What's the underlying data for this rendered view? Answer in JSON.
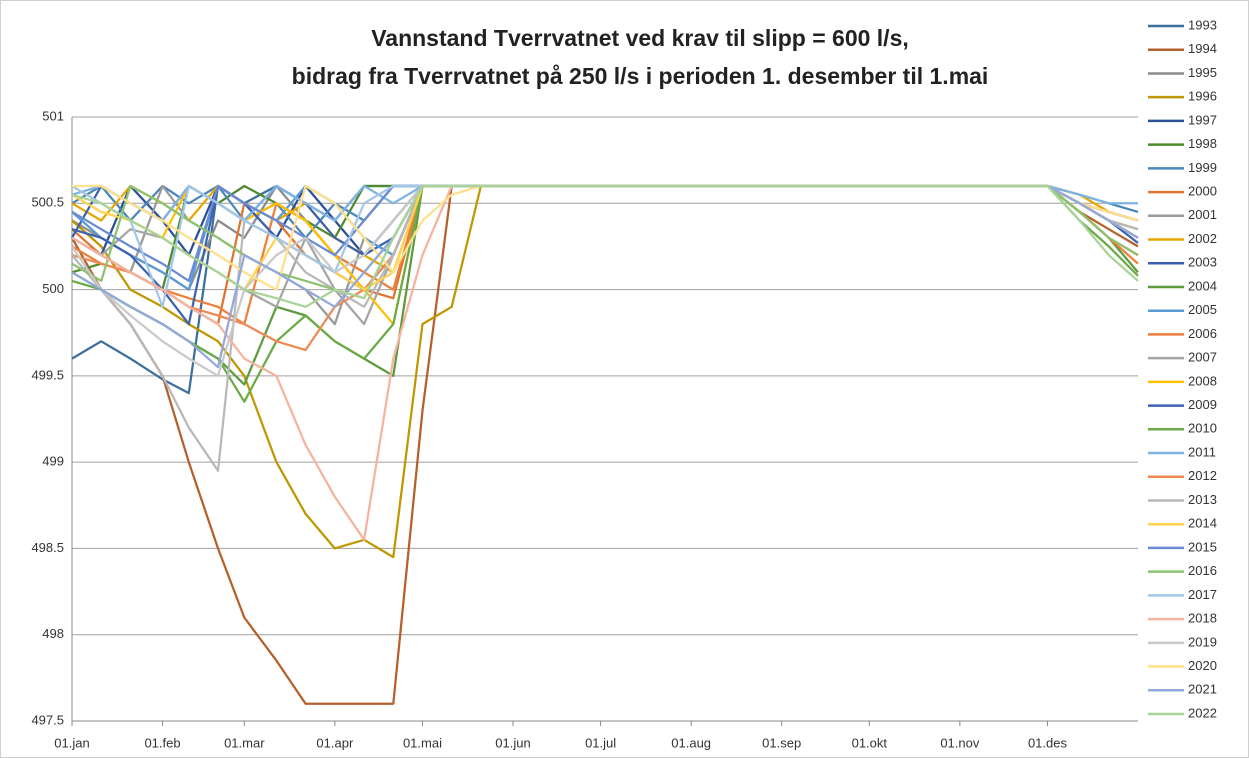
{
  "chart_data": {
    "type": "line",
    "title": [
      "Vannstand Tverrvatnet ved krav til slipp = 600 l/s,",
      "bidrag fra Tverrvatnet på 250 l/s i perioden 1. desember til 1.mai"
    ],
    "x": [
      0,
      10,
      20,
      31,
      40,
      50,
      59,
      70,
      80,
      90,
      100,
      110,
      120,
      130,
      140,
      150,
      334,
      345,
      355,
      365
    ],
    "xlim": [
      0,
      365
    ],
    "xticks": [
      {
        "value": 0,
        "label": "01.jan"
      },
      {
        "value": 31,
        "label": "01.feb"
      },
      {
        "value": 59,
        "label": "01.mar"
      },
      {
        "value": 90,
        "label": "01.apr"
      },
      {
        "value": 120,
        "label": "01.mai"
      },
      {
        "value": 151,
        "label": "01.jun"
      },
      {
        "value": 181,
        "label": "01.jul"
      },
      {
        "value": 212,
        "label": "01.aug"
      },
      {
        "value": 243,
        "label": "01.sep"
      },
      {
        "value": 273,
        "label": "01.okt"
      },
      {
        "value": 304,
        "label": "01.nov"
      },
      {
        "value": 334,
        "label": "01.des"
      }
    ],
    "ylim": [
      497.5,
      501
    ],
    "yticks": [
      497.5,
      498,
      498.5,
      499,
      499.5,
      500,
      500.5,
      501
    ],
    "grid": true,
    "legend": "right",
    "series": [
      {
        "name": "1993",
        "color": "#3d6f9e",
        "values": [
          499.6,
          499.7,
          499.6,
          499.48,
          499.4,
          500.6,
          500.5,
          500.6,
          500.5,
          500.4,
          500.6,
          500.6,
          500.6,
          500.6,
          500.6,
          500.6,
          500.6,
          500.5,
          500.4,
          500.3
        ]
      },
      {
        "name": "1994",
        "color": "#b5602a",
        "values": [
          500.3,
          500.0,
          499.8,
          499.5,
          499.0,
          498.5,
          498.1,
          497.85,
          497.6,
          497.6,
          497.6,
          497.6,
          499.3,
          500.6,
          500.6,
          500.6,
          500.6,
          500.45,
          500.35,
          500.25
        ]
      },
      {
        "name": "1995",
        "color": "#8c8c8c",
        "values": [
          500.4,
          500.3,
          500.2,
          500.1,
          500.0,
          500.4,
          500.3,
          500.6,
          500.4,
          500.2,
          500.1,
          500.3,
          500.6,
          500.6,
          500.6,
          500.6,
          500.6,
          500.5,
          500.45,
          500.4
        ]
      },
      {
        "name": "1996",
        "color": "#bf9700",
        "values": [
          500.4,
          500.25,
          500.0,
          499.9,
          499.8,
          499.7,
          499.5,
          499.0,
          498.7,
          498.5,
          498.55,
          498.45,
          499.8,
          499.9,
          500.6,
          500.6,
          500.6,
          500.5,
          500.4,
          500.3
        ]
      },
      {
        "name": "1997",
        "color": "#2c4f98",
        "values": [
          500.3,
          500.2,
          500.6,
          500.4,
          500.2,
          500.6,
          500.5,
          500.3,
          500.6,
          500.4,
          500.2,
          500.4,
          500.6,
          500.6,
          500.6,
          500.6,
          500.6,
          500.5,
          500.45,
          500.4
        ]
      },
      {
        "name": "1998",
        "color": "#4e8a2e",
        "values": [
          500.1,
          500.15,
          500.1,
          500.0,
          500.6,
          500.5,
          500.6,
          500.5,
          500.4,
          500.3,
          500.6,
          500.6,
          500.6,
          500.6,
          500.6,
          500.6,
          500.6,
          500.5,
          500.4,
          500.3
        ]
      },
      {
        "name": "1999",
        "color": "#4a86b8",
        "values": [
          500.5,
          500.6,
          500.4,
          500.6,
          500.5,
          500.6,
          500.4,
          500.5,
          500.3,
          500.5,
          500.4,
          500.6,
          500.6,
          500.6,
          500.6,
          500.6,
          500.6,
          500.55,
          500.5,
          500.45
        ]
      },
      {
        "name": "2000",
        "color": "#e07530",
        "values": [
          500.35,
          500.2,
          500.1,
          500.0,
          499.9,
          499.8,
          500.5,
          500.4,
          500.2,
          500.1,
          500.0,
          499.95,
          500.6,
          500.6,
          500.6,
          500.6,
          500.6,
          500.45,
          500.3,
          500.2
        ]
      },
      {
        "name": "2001",
        "color": "#9a9a9a",
        "values": [
          500.3,
          500.2,
          500.1,
          500.6,
          500.4,
          500.3,
          500.2,
          500.1,
          500.0,
          499.8,
          500.3,
          500.2,
          500.6,
          500.6,
          500.6,
          500.6,
          500.6,
          500.5,
          500.4,
          500.35
        ]
      },
      {
        "name": "2002",
        "color": "#e6a700",
        "values": [
          500.5,
          500.4,
          500.6,
          500.5,
          500.4,
          500.6,
          500.5,
          500.4,
          500.5,
          500.3,
          500.2,
          500.1,
          500.6,
          500.6,
          500.6,
          500.6,
          500.6,
          500.55,
          500.45,
          500.4
        ]
      },
      {
        "name": "2003",
        "color": "#3a5fae",
        "values": [
          500.3,
          500.6,
          500.5,
          500.4,
          500.6,
          500.5,
          500.4,
          500.6,
          500.5,
          500.3,
          500.2,
          500.3,
          500.6,
          500.6,
          500.6,
          500.6,
          500.6,
          500.5,
          500.4,
          500.3
        ]
      },
      {
        "name": "2004",
        "color": "#5e9a3e",
        "values": [
          500.1,
          500.0,
          499.9,
          499.8,
          499.7,
          499.6,
          499.45,
          499.9,
          499.85,
          499.7,
          499.6,
          499.5,
          500.6,
          500.6,
          500.6,
          500.6,
          500.6,
          500.45,
          500.3,
          500.1
        ]
      },
      {
        "name": "2005",
        "color": "#5b9bd5",
        "values": [
          500.45,
          500.3,
          500.2,
          500.1,
          500.0,
          500.6,
          500.5,
          500.4,
          500.6,
          500.5,
          500.3,
          500.2,
          500.6,
          500.6,
          500.6,
          500.6,
          500.6,
          500.5,
          500.4,
          500.3
        ]
      },
      {
        "name": "2006",
        "color": "#ee7f3d",
        "values": [
          500.25,
          500.15,
          500.1,
          500.0,
          499.95,
          499.9,
          499.8,
          500.5,
          500.4,
          500.2,
          500.1,
          500.0,
          500.6,
          500.6,
          500.6,
          500.6,
          500.6,
          500.45,
          500.3,
          500.15
        ]
      },
      {
        "name": "2007",
        "color": "#a5a5a5",
        "values": [
          500.3,
          500.2,
          500.35,
          500.3,
          500.2,
          500.1,
          500.0,
          499.9,
          500.3,
          500.0,
          499.8,
          500.2,
          500.6,
          500.6,
          500.6,
          500.6,
          500.6,
          500.5,
          500.4,
          500.3
        ]
      },
      {
        "name": "2008",
        "color": "#ffc000",
        "values": [
          500.6,
          500.5,
          500.4,
          500.3,
          500.6,
          500.5,
          500.4,
          500.5,
          500.4,
          500.2,
          500.0,
          499.8,
          500.6,
          500.6,
          500.6,
          500.6,
          500.6,
          500.5,
          500.4,
          500.35
        ]
      },
      {
        "name": "2009",
        "color": "#3c63b2",
        "values": [
          500.35,
          500.3,
          500.2,
          500.0,
          499.8,
          500.6,
          500.5,
          500.3,
          500.2,
          500.1,
          500.0,
          500.2,
          500.6,
          500.6,
          500.6,
          500.6,
          500.6,
          500.5,
          500.4,
          500.27
        ]
      },
      {
        "name": "2010",
        "color": "#6aab47",
        "values": [
          500.05,
          500.0,
          499.9,
          499.8,
          499.7,
          499.6,
          499.35,
          499.7,
          499.85,
          499.7,
          499.6,
          499.8,
          500.6,
          500.6,
          500.6,
          500.6,
          500.6,
          500.4,
          500.25,
          500.08
        ]
      },
      {
        "name": "2011",
        "color": "#7fb3e3",
        "values": [
          500.55,
          500.6,
          500.5,
          500.4,
          500.6,
          500.5,
          500.4,
          500.6,
          500.5,
          500.4,
          500.6,
          500.5,
          500.6,
          500.6,
          500.6,
          500.6,
          500.6,
          500.55,
          500.5,
          500.5
        ]
      },
      {
        "name": "2012",
        "color": "#f08a55",
        "values": [
          500.2,
          500.15,
          500.1,
          500.0,
          499.9,
          499.85,
          499.8,
          499.7,
          499.65,
          499.9,
          500.0,
          500.2,
          500.6,
          500.6,
          500.6,
          500.6,
          500.6,
          500.5,
          500.4,
          500.3
        ]
      },
      {
        "name": "2013",
        "color": "#b8b8b8",
        "values": [
          500.2,
          500.0,
          499.8,
          499.5,
          499.2,
          498.95,
          500.4,
          500.3,
          500.1,
          500.0,
          499.9,
          500.2,
          500.6,
          500.6,
          500.6,
          500.6,
          500.6,
          500.5,
          500.4,
          500.35
        ]
      },
      {
        "name": "2014",
        "color": "#ffd34d",
        "values": [
          500.55,
          500.45,
          500.4,
          500.3,
          500.2,
          500.1,
          500.0,
          500.3,
          500.2,
          500.1,
          500.0,
          500.1,
          500.6,
          500.6,
          500.6,
          500.6,
          500.6,
          500.5,
          500.4,
          500.3
        ]
      },
      {
        "name": "2015",
        "color": "#6a8bd4",
        "values": [
          500.45,
          500.35,
          500.25,
          500.15,
          500.05,
          500.6,
          500.5,
          500.4,
          500.3,
          500.2,
          500.4,
          500.6,
          500.6,
          500.6,
          500.6,
          500.6,
          500.6,
          500.5,
          500.45,
          500.4
        ]
      },
      {
        "name": "2016",
        "color": "#8cc370",
        "values": [
          500.15,
          500.05,
          500.6,
          500.5,
          500.4,
          500.3,
          500.2,
          500.1,
          500.05,
          500.0,
          499.95,
          500.3,
          500.6,
          500.6,
          500.6,
          500.6,
          500.6,
          500.45,
          500.3,
          500.2
        ]
      },
      {
        "name": "2017",
        "color": "#a3c7ea",
        "values": [
          500.6,
          500.5,
          500.4,
          499.9,
          500.6,
          500.5,
          500.4,
          500.3,
          500.2,
          500.1,
          500.5,
          500.6,
          500.6,
          500.6,
          500.6,
          500.6,
          500.6,
          500.5,
          500.45,
          500.4
        ]
      },
      {
        "name": "2018",
        "color": "#f5b3a0",
        "values": [
          500.3,
          500.2,
          500.1,
          500.0,
          499.9,
          499.8,
          499.6,
          499.5,
          499.1,
          498.8,
          498.55,
          499.6,
          500.2,
          500.6,
          500.6,
          500.6,
          500.6,
          500.5,
          500.45,
          500.4
        ]
      },
      {
        "name": "2019",
        "color": "#c9c9c9",
        "values": [
          500.25,
          500.0,
          499.85,
          499.7,
          499.6,
          499.5,
          500.0,
          500.2,
          500.3,
          500.1,
          500.2,
          500.4,
          500.6,
          500.6,
          500.6,
          500.6,
          500.6,
          500.5,
          500.4,
          500.3
        ]
      },
      {
        "name": "2020",
        "color": "#ffe08a",
        "values": [
          500.6,
          500.6,
          500.5,
          500.4,
          500.3,
          500.2,
          500.1,
          500.0,
          500.6,
          500.5,
          500.3,
          500.1,
          500.4,
          500.55,
          500.6,
          500.6,
          500.6,
          500.5,
          500.45,
          500.4
        ]
      },
      {
        "name": "2021",
        "color": "#93a9dc",
        "values": [
          500.1,
          500.0,
          499.9,
          499.8,
          499.7,
          499.55,
          500.2,
          500.1,
          500.0,
          499.9,
          500.1,
          500.3,
          500.6,
          500.6,
          500.6,
          500.6,
          500.6,
          500.5,
          500.4,
          500.3
        ]
      },
      {
        "name": "2022",
        "color": "#a6d596",
        "values": [
          500.55,
          500.5,
          500.4,
          500.3,
          500.2,
          500.1,
          500.0,
          499.95,
          499.9,
          500.0,
          499.95,
          500.3,
          500.6,
          500.6,
          500.6,
          500.6,
          500.6,
          500.4,
          500.2,
          500.05
        ]
      }
    ]
  }
}
